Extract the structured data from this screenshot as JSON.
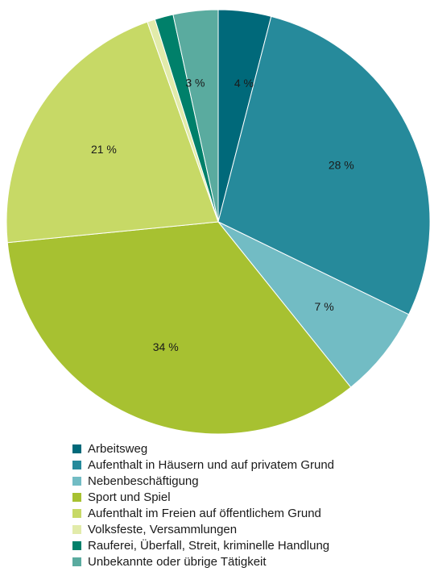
{
  "chart_data": {
    "type": "pie",
    "start_angle_deg": 0,
    "direction": "clockwise",
    "slices": [
      {
        "label": "Arbeitsweg",
        "value": 4,
        "display": "4 %",
        "color": "#00697a"
      },
      {
        "label": "Aufenthalt in Häusern und auf privatem Grund",
        "value": 28,
        "display": "28 %",
        "color": "#268a9b"
      },
      {
        "label": "Nebenbeschäftigung",
        "value": 7,
        "display": "7 %",
        "color": "#72bcc4"
      },
      {
        "label": "Sport und Spiel",
        "value": 34,
        "display": "34 %",
        "color": "#a7c131"
      },
      {
        "label": "Aufenthalt im Freien auf öffentlichem Grund",
        "value": 21,
        "display": "21 %",
        "color": "#c7d966"
      },
      {
        "label": "Volksfeste, Versammlungen",
        "value": 0.6,
        "display": "",
        "color": "#e2ebaa"
      },
      {
        "label": "Rauferei, Überfall, Streit, kriminelle Handlung",
        "value": 1.4,
        "display": "",
        "color": "#00806a"
      },
      {
        "label": "Unbekannte oder übrige Tätigkeit",
        "value": 3.4,
        "display": "3 %",
        "color": "#5aab9f"
      }
    ]
  }
}
